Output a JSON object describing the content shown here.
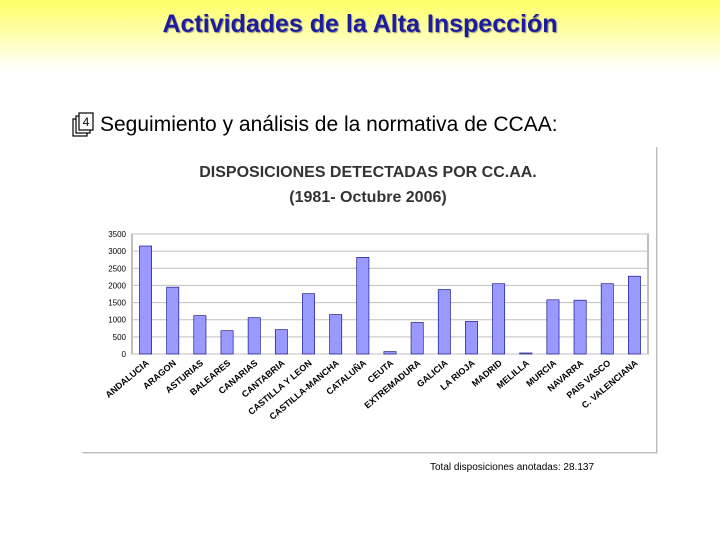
{
  "slide": {
    "title": "Actividades de la Alta Inspección",
    "bullet_text": "Seguimiento y análisis de la normativa de CCAA:",
    "bullet_icon": "numbered-list-icon",
    "total_note": "Total disposiciones anotadas: 28.137"
  },
  "colors": {
    "title": "#1d1d9b",
    "bar_fill": "#9999ff",
    "bar_stroke": "#000080",
    "header_band": "#ffff66"
  },
  "chart_data": {
    "type": "bar",
    "title_line1": "DISPOSICIONES DETECTADAS POR CC.AA.",
    "title_line2": "(1981- Octubre 2006)",
    "xlabel": "",
    "ylabel": "",
    "ylim": [
      0,
      3500
    ],
    "yticks": [
      0,
      500,
      1000,
      1500,
      2000,
      2500,
      3000,
      3500
    ],
    "grid": true,
    "legend": "none",
    "categories": [
      "ANDALUCIA",
      "ARAGON",
      "ASTURIAS",
      "BALEARES",
      "CANARIAS",
      "CANTABRIA",
      "CASTILLA Y LEON",
      "CASTILLA-MANCHA",
      "CATALUÑA",
      "CEUTA",
      "EXTREMADURA",
      "GALICIA",
      "LA RIOJA",
      "MADRID",
      "MELILLA",
      "MURCIA",
      "NAVARRA",
      "PAIS VASCO",
      "C. VALENCIANA"
    ],
    "values": [
      3150,
      1950,
      1120,
      680,
      1060,
      710,
      1760,
      1150,
      2820,
      70,
      920,
      1880,
      950,
      2050,
      30,
      1580,
      1570,
      2050,
      2270
    ]
  }
}
